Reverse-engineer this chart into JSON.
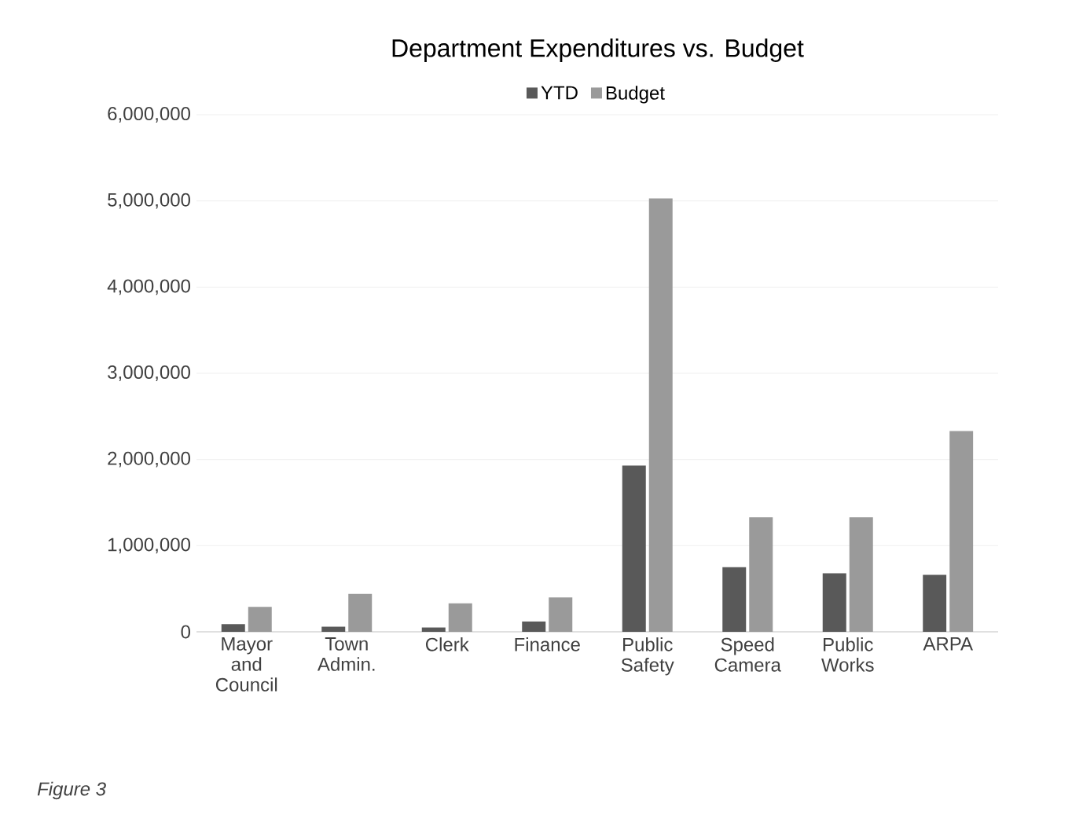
{
  "chart_data": {
    "type": "bar",
    "title": "Department Expenditures vs. Budget",
    "categories": [
      "Mayor and Council",
      "Town Admin.",
      "Clerk",
      "Finance",
      "Public Safety",
      "Speed Camera",
      "Public Works",
      "ARPA"
    ],
    "series": [
      {
        "name": "YTD",
        "color": "#595959",
        "values": [
          90000,
          60000,
          50000,
          120000,
          1930000,
          750000,
          680000,
          660000
        ]
      },
      {
        "name": "Budget",
        "color": "#9a9a9a",
        "values": [
          290000,
          440000,
          330000,
          400000,
          5030000,
          1330000,
          1330000,
          2330000
        ]
      }
    ],
    "ylim": [
      0,
      6000000
    ],
    "yticks": [
      {
        "value": 0,
        "label": "0"
      },
      {
        "value": 1000000,
        "label": "1,000,000"
      },
      {
        "value": 2000000,
        "label": "2,000,000"
      },
      {
        "value": 3000000,
        "label": "3,000,000"
      },
      {
        "value": 4000000,
        "label": "4,000,000"
      },
      {
        "value": 5000000,
        "label": "5,000,000"
      },
      {
        "value": 6000000,
        "label": "6,000,000"
      }
    ],
    "grid": "y",
    "legend": "top",
    "annotations": [
      "*Figure 3*"
    ]
  }
}
